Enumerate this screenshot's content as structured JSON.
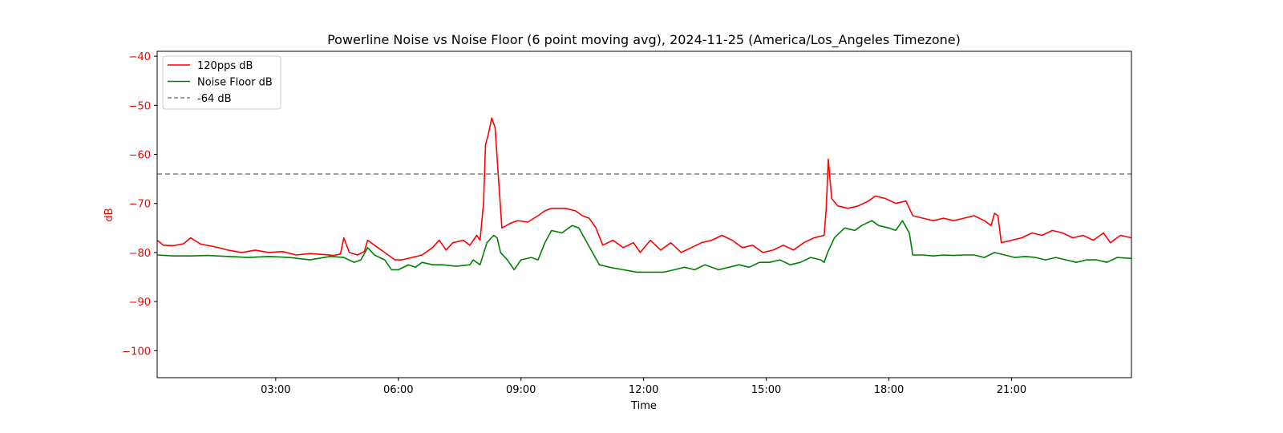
{
  "chart_data": {
    "type": "line",
    "title": "Powerline Noise vs Noise Floor (6 point moving avg), 2024-11-25 (America/Los_Angeles Timezone)",
    "xlabel": "Time",
    "ylabel": "dB",
    "ylabel_color": "#ff0000",
    "ytick_color": "#ff0000",
    "xlim": [
      "00:06",
      "23:56"
    ],
    "ylim": [
      -105.5,
      -39
    ],
    "x_ticks": [
      "03:00",
      "06:00",
      "09:00",
      "12:00",
      "15:00",
      "18:00",
      "21:00"
    ],
    "y_ticks": [
      -40,
      -50,
      -60,
      -70,
      -80,
      -90,
      -100
    ],
    "y_tick_labels": [
      "−40",
      "−50",
      "−60",
      "−70",
      "−80",
      "−90",
      "−100"
    ],
    "grid": false,
    "legend_position": "top-left",
    "series": [
      {
        "name": "120pps dB",
        "color": "#ff0000",
        "points": [
          [
            "00:06",
            -77.5
          ],
          [
            "00:15",
            -78.5
          ],
          [
            "00:30",
            -78.6
          ],
          [
            "00:45",
            -78.2
          ],
          [
            "00:55",
            -77.0
          ],
          [
            "01:10",
            -78.3
          ],
          [
            "01:30",
            -78.8
          ],
          [
            "01:50",
            -79.5
          ],
          [
            "02:10",
            -80.0
          ],
          [
            "02:30",
            -79.5
          ],
          [
            "02:50",
            -80.0
          ],
          [
            "03:10",
            -79.8
          ],
          [
            "03:30",
            -80.5
          ],
          [
            "03:50",
            -80.2
          ],
          [
            "04:10",
            -80.4
          ],
          [
            "04:25",
            -80.6
          ],
          [
            "04:35",
            -80.3
          ],
          [
            "04:40",
            -77.0
          ],
          [
            "04:48",
            -80.0
          ],
          [
            "05:00",
            -80.5
          ],
          [
            "05:10",
            -79.8
          ],
          [
            "05:15",
            -77.5
          ],
          [
            "05:25",
            -78.5
          ],
          [
            "05:40",
            -80.0
          ],
          [
            "05:55",
            -81.5
          ],
          [
            "06:05",
            -81.5
          ],
          [
            "06:20",
            -81.0
          ],
          [
            "06:35",
            -80.5
          ],
          [
            "06:50",
            -79.0
          ],
          [
            "07:00",
            -77.5
          ],
          [
            "07:10",
            -79.5
          ],
          [
            "07:20",
            -78.0
          ],
          [
            "07:35",
            -77.5
          ],
          [
            "07:45",
            -78.5
          ],
          [
            "07:55",
            -76.5
          ],
          [
            "08:00",
            -77.5
          ],
          [
            "08:05",
            -70.0
          ],
          [
            "08:08",
            -58.0
          ],
          [
            "08:12",
            -56.0
          ],
          [
            "08:17",
            -52.6
          ],
          [
            "08:22",
            -54.5
          ],
          [
            "08:27",
            -65.0
          ],
          [
            "08:32",
            -75.0
          ],
          [
            "08:45",
            -74.0
          ],
          [
            "08:55",
            -73.5
          ],
          [
            "09:10",
            -73.8
          ],
          [
            "09:25",
            -72.5
          ],
          [
            "09:35",
            -71.5
          ],
          [
            "09:45",
            -71.0
          ],
          [
            "10:05",
            -71.0
          ],
          [
            "10:20",
            -71.5
          ],
          [
            "10:30",
            -72.5
          ],
          [
            "10:40",
            -73.0
          ],
          [
            "10:50",
            -75.0
          ],
          [
            "11:00",
            -78.5
          ],
          [
            "11:15",
            -77.5
          ],
          [
            "11:30",
            -79.0
          ],
          [
            "11:45",
            -78.0
          ],
          [
            "11:55",
            -80.0
          ],
          [
            "12:10",
            -77.5
          ],
          [
            "12:25",
            -79.5
          ],
          [
            "12:40",
            -78.0
          ],
          [
            "12:55",
            -80.0
          ],
          [
            "13:10",
            -79.0
          ],
          [
            "13:25",
            -78.0
          ],
          [
            "13:40",
            -77.5
          ],
          [
            "13:55",
            -76.5
          ],
          [
            "14:10",
            -77.5
          ],
          [
            "14:25",
            -79.0
          ],
          [
            "14:40",
            -78.5
          ],
          [
            "14:55",
            -80.0
          ],
          [
            "15:10",
            -79.5
          ],
          [
            "15:25",
            -78.5
          ],
          [
            "15:40",
            -79.5
          ],
          [
            "15:55",
            -78.0
          ],
          [
            "16:10",
            -77.0
          ],
          [
            "16:25",
            -76.5
          ],
          [
            "16:28",
            -71.0
          ],
          [
            "16:31",
            -61.0
          ],
          [
            "16:36",
            -69.0
          ],
          [
            "16:45",
            -70.5
          ],
          [
            "17:00",
            -71.0
          ],
          [
            "17:15",
            -70.5
          ],
          [
            "17:30",
            -69.5
          ],
          [
            "17:40",
            -68.5
          ],
          [
            "17:55",
            -69.0
          ],
          [
            "18:10",
            -70.0
          ],
          [
            "18:25",
            -69.5
          ],
          [
            "18:35",
            -72.5
          ],
          [
            "18:50",
            -73.0
          ],
          [
            "19:05",
            -73.5
          ],
          [
            "19:20",
            -73.0
          ],
          [
            "19:35",
            -73.5
          ],
          [
            "19:50",
            -73.0
          ],
          [
            "20:05",
            -72.5
          ],
          [
            "20:20",
            -73.5
          ],
          [
            "20:30",
            -74.5
          ],
          [
            "20:35",
            -72.0
          ],
          [
            "20:40",
            -72.5
          ],
          [
            "20:45",
            -78.0
          ],
          [
            "21:00",
            -77.5
          ],
          [
            "21:15",
            -77.0
          ],
          [
            "21:30",
            -76.0
          ],
          [
            "21:45",
            -76.5
          ],
          [
            "22:00",
            -75.5
          ],
          [
            "22:15",
            -76.0
          ],
          [
            "22:30",
            -77.0
          ],
          [
            "22:45",
            -76.5
          ],
          [
            "23:00",
            -77.5
          ],
          [
            "23:15",
            -76.0
          ],
          [
            "23:25",
            -78.0
          ],
          [
            "23:40",
            -76.5
          ],
          [
            "23:56",
            -77.0
          ]
        ]
      },
      {
        "name": "Noise Floor dB",
        "color": "#008000",
        "points": [
          [
            "00:06",
            -80.5
          ],
          [
            "00:30",
            -80.7
          ],
          [
            "00:55",
            -80.7
          ],
          [
            "01:20",
            -80.6
          ],
          [
            "01:50",
            -80.8
          ],
          [
            "02:20",
            -81.0
          ],
          [
            "02:50",
            -80.8
          ],
          [
            "03:20",
            -81.0
          ],
          [
            "03:50",
            -81.5
          ],
          [
            "04:20",
            -80.8
          ],
          [
            "04:40",
            -81.0
          ],
          [
            "04:55",
            -82.0
          ],
          [
            "05:05",
            -81.5
          ],
          [
            "05:15",
            -79.0
          ],
          [
            "05:25",
            -80.5
          ],
          [
            "05:40",
            -81.5
          ],
          [
            "05:50",
            -83.5
          ],
          [
            "06:00",
            -83.5
          ],
          [
            "06:15",
            -82.5
          ],
          [
            "06:25",
            -83.0
          ],
          [
            "06:35",
            -82.0
          ],
          [
            "06:50",
            -82.5
          ],
          [
            "07:05",
            -82.5
          ],
          [
            "07:25",
            -82.8
          ],
          [
            "07:45",
            -82.5
          ],
          [
            "07:50",
            -81.5
          ],
          [
            "08:00",
            -82.5
          ],
          [
            "08:10",
            -78.0
          ],
          [
            "08:20",
            -76.5
          ],
          [
            "08:25",
            -77.0
          ],
          [
            "08:30",
            -80.0
          ],
          [
            "08:40",
            -81.5
          ],
          [
            "08:50",
            -83.5
          ],
          [
            "09:00",
            -81.5
          ],
          [
            "09:15",
            -81.0
          ],
          [
            "09:25",
            -81.5
          ],
          [
            "09:35",
            -78.0
          ],
          [
            "09:45",
            -75.5
          ],
          [
            "10:00",
            -76.0
          ],
          [
            "10:15",
            -74.5
          ],
          [
            "10:25",
            -75.0
          ],
          [
            "10:35",
            -77.5
          ],
          [
            "10:45",
            -80.0
          ],
          [
            "10:55",
            -82.5
          ],
          [
            "11:10",
            -83.0
          ],
          [
            "11:30",
            -83.5
          ],
          [
            "11:50",
            -84.0
          ],
          [
            "12:10",
            -84.0
          ],
          [
            "12:30",
            -84.0
          ],
          [
            "12:45",
            -83.5
          ],
          [
            "13:00",
            -83.0
          ],
          [
            "13:15",
            -83.5
          ],
          [
            "13:30",
            -82.5
          ],
          [
            "13:50",
            -83.5
          ],
          [
            "14:05",
            -83.0
          ],
          [
            "14:20",
            -82.5
          ],
          [
            "14:35",
            -83.0
          ],
          [
            "14:50",
            -82.0
          ],
          [
            "15:05",
            -82.0
          ],
          [
            "15:20",
            -81.5
          ],
          [
            "15:35",
            -82.5
          ],
          [
            "15:50",
            -82.0
          ],
          [
            "16:05",
            -81.0
          ],
          [
            "16:20",
            -81.5
          ],
          [
            "16:25",
            -82.0
          ],
          [
            "16:30",
            -80.0
          ],
          [
            "16:40",
            -77.0
          ],
          [
            "16:55",
            -75.0
          ],
          [
            "17:10",
            -75.5
          ],
          [
            "17:20",
            -74.5
          ],
          [
            "17:35",
            -73.5
          ],
          [
            "17:45",
            -74.5
          ],
          [
            "18:00",
            -75.0
          ],
          [
            "18:10",
            -75.5
          ],
          [
            "18:20",
            -73.5
          ],
          [
            "18:30",
            -76.0
          ],
          [
            "18:35",
            -80.5
          ],
          [
            "18:50",
            -80.5
          ],
          [
            "19:05",
            -80.7
          ],
          [
            "19:20",
            -80.5
          ],
          [
            "19:35",
            -80.6
          ],
          [
            "19:50",
            -80.5
          ],
          [
            "20:05",
            -80.5
          ],
          [
            "20:20",
            -81.0
          ],
          [
            "20:35",
            -80.0
          ],
          [
            "20:50",
            -80.5
          ],
          [
            "21:05",
            -81.0
          ],
          [
            "21:20",
            -80.8
          ],
          [
            "21:35",
            -81.0
          ],
          [
            "21:50",
            -81.5
          ],
          [
            "22:05",
            -81.0
          ],
          [
            "22:20",
            -81.5
          ],
          [
            "22:35",
            -82.0
          ],
          [
            "22:50",
            -81.5
          ],
          [
            "23:05",
            -81.5
          ],
          [
            "23:20",
            -82.0
          ],
          [
            "23:35",
            -81.0
          ],
          [
            "23:56",
            -81.2
          ]
        ]
      },
      {
        "name": "-64 dB",
        "color": "#808080",
        "dashed": true,
        "constant": -64
      }
    ]
  }
}
